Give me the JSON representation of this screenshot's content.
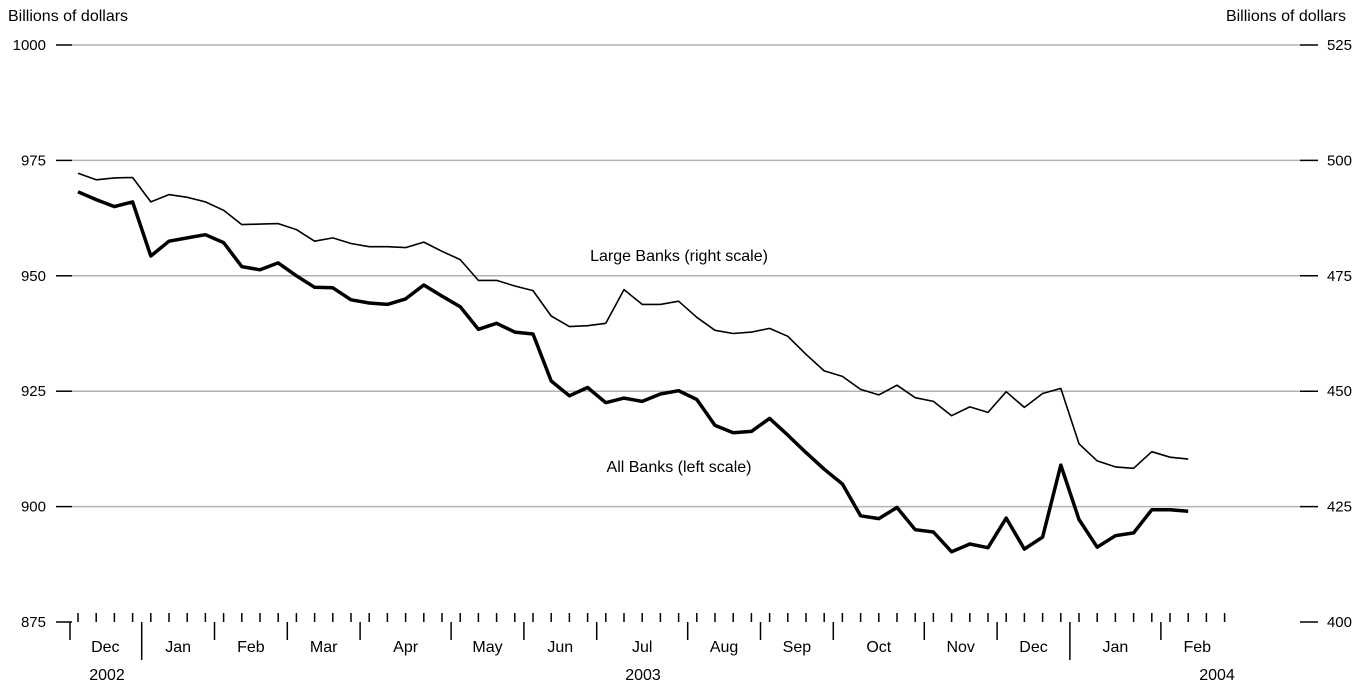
{
  "chart_data": {
    "type": "line",
    "left_axis": {
      "title": "Billions of dollars",
      "ylim": [
        875,
        1000
      ],
      "ticks": [
        875,
        900,
        925,
        950,
        975,
        1000
      ]
    },
    "right_axis": {
      "title": "Billions of dollars",
      "ylim": [
        400,
        525
      ],
      "ticks": [
        400,
        425,
        450,
        475,
        500,
        525
      ]
    },
    "months": [
      "Dec",
      "Jan",
      "Feb",
      "Mar",
      "Apr",
      "May",
      "Jun",
      "Jul",
      "Aug",
      "Sep",
      "Oct",
      "Nov",
      "Dec",
      "Jan",
      "Feb"
    ],
    "years": [
      "2002",
      "2003",
      "2004"
    ],
    "grid": true,
    "series": [
      {
        "name": "All Banks (left scale)",
        "axis": "left",
        "values": [
          968.2,
          966.5,
          965.0,
          966.0,
          954.3,
          957.5,
          958.2,
          958.9,
          957.2,
          952.0,
          951.3,
          952.8,
          950.0,
          947.5,
          947.4,
          944.8,
          944.1,
          943.8,
          945.0,
          948.0,
          945.6,
          943.3,
          938.4,
          939.7,
          937.8,
          937.4,
          927.2,
          924.0,
          925.8,
          922.5,
          923.5,
          922.8,
          924.4,
          925.1,
          923.2,
          917.6,
          916.0,
          916.3,
          919.1,
          915.5,
          911.7,
          908.1,
          904.9,
          898.0,
          897.4,
          899.8,
          895.0,
          894.5,
          890.2,
          891.9,
          891.1,
          897.5,
          890.8,
          893.4,
          909.0,
          897.2,
          891.2,
          893.7,
          894.3,
          899.3,
          899.3,
          899.0
        ]
      },
      {
        "name": "Large Banks (right scale)",
        "axis": "right",
        "values": [
          497.2,
          495.8,
          496.2,
          496.3,
          491.0,
          492.6,
          492.0,
          491.0,
          489.2,
          486.1,
          486.2,
          486.3,
          485.0,
          482.5,
          483.2,
          482.0,
          481.3,
          481.3,
          481.1,
          482.3,
          480.3,
          478.5,
          474.0,
          474.0,
          472.8,
          471.8,
          466.3,
          464.0,
          464.2,
          464.7,
          472.0,
          468.8,
          468.8,
          469.5,
          466.0,
          463.2,
          462.5,
          462.8,
          463.6,
          461.9,
          458.0,
          454.4,
          453.2,
          450.4,
          449.2,
          451.3,
          448.6,
          447.8,
          444.7,
          446.6,
          445.4,
          449.9,
          446.5,
          449.5,
          450.6,
          438.6,
          434.9,
          433.6,
          433.3,
          436.9,
          435.7,
          435.3
        ]
      }
    ]
  }
}
